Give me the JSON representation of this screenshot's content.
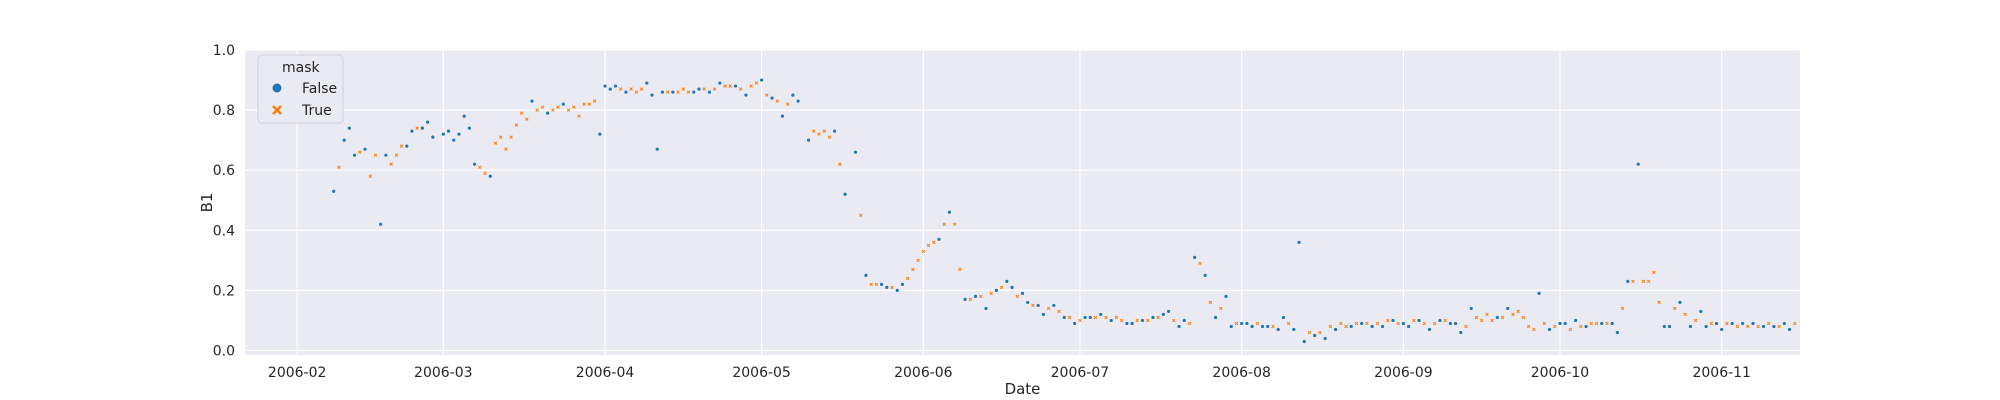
{
  "chart_data": {
    "type": "scatter",
    "xlabel": "Date",
    "ylabel": "B1",
    "xlim": [
      "2006-01-22",
      "2006-11-16"
    ],
    "ylim": [
      -0.015,
      1.0
    ],
    "grid": true,
    "legend": {
      "title": "mask",
      "placement": "top-left"
    },
    "x_ticks": [
      "2006-02",
      "2006-03",
      "2006-04",
      "2006-05",
      "2006-06",
      "2006-07",
      "2006-08",
      "2006-09",
      "2006-10",
      "2006-11"
    ],
    "y_ticks": [
      "0.0",
      "0.2",
      "0.4",
      "0.6",
      "0.8",
      "1.0"
    ],
    "series": [
      {
        "name": "False",
        "color": "#1f77b4",
        "marker": "circle",
        "points": [
          [
            "2006-02-08",
            0.53
          ],
          [
            "2006-02-10",
            0.7
          ],
          [
            "2006-02-11",
            0.74
          ],
          [
            "2006-02-12",
            0.65
          ],
          [
            "2006-02-14",
            0.67
          ],
          [
            "2006-02-17",
            0.42
          ],
          [
            "2006-02-18",
            0.65
          ],
          [
            "2006-02-22",
            0.68
          ],
          [
            "2006-02-23",
            0.73
          ],
          [
            "2006-02-25",
            0.74
          ],
          [
            "2006-02-26",
            0.76
          ],
          [
            "2006-02-27",
            0.71
          ],
          [
            "2006-03-01",
            0.72
          ],
          [
            "2006-03-02",
            0.73
          ],
          [
            "2006-03-03",
            0.7
          ],
          [
            "2006-03-04",
            0.72
          ],
          [
            "2006-03-05",
            0.78
          ],
          [
            "2006-03-06",
            0.74
          ],
          [
            "2006-03-07",
            0.62
          ],
          [
            "2006-03-10",
            0.58
          ],
          [
            "2006-03-18",
            0.83
          ],
          [
            "2006-03-21",
            0.79
          ],
          [
            "2006-03-24",
            0.82
          ],
          [
            "2006-03-31",
            0.72
          ],
          [
            "2006-04-01",
            0.88
          ],
          [
            "2006-04-02",
            0.87
          ],
          [
            "2006-04-03",
            0.88
          ],
          [
            "2006-04-05",
            0.86
          ],
          [
            "2006-04-09",
            0.89
          ],
          [
            "2006-04-10",
            0.85
          ],
          [
            "2006-04-11",
            0.67
          ],
          [
            "2006-04-12",
            0.86
          ],
          [
            "2006-04-14",
            0.86
          ],
          [
            "2006-04-18",
            0.86
          ],
          [
            "2006-04-19",
            0.87
          ],
          [
            "2006-04-21",
            0.86
          ],
          [
            "2006-04-23",
            0.89
          ],
          [
            "2006-04-26",
            0.88
          ],
          [
            "2006-04-28",
            0.85
          ],
          [
            "2006-05-01",
            0.9
          ],
          [
            "2006-05-03",
            0.84
          ],
          [
            "2006-05-05",
            0.78
          ],
          [
            "2006-05-07",
            0.85
          ],
          [
            "2006-05-08",
            0.83
          ],
          [
            "2006-05-10",
            0.7
          ],
          [
            "2006-05-15",
            0.73
          ],
          [
            "2006-05-17",
            0.52
          ],
          [
            "2006-05-19",
            0.66
          ],
          [
            "2006-05-21",
            0.25
          ],
          [
            "2006-05-24",
            0.22
          ],
          [
            "2006-05-25",
            0.21
          ],
          [
            "2006-05-27",
            0.2
          ],
          [
            "2006-05-28",
            0.22
          ],
          [
            "2006-06-04",
            0.37
          ],
          [
            "2006-06-06",
            0.46
          ],
          [
            "2006-06-09",
            0.17
          ],
          [
            "2006-06-11",
            0.18
          ],
          [
            "2006-06-13",
            0.14
          ],
          [
            "2006-06-15",
            0.2
          ],
          [
            "2006-06-17",
            0.23
          ],
          [
            "2006-06-18",
            0.21
          ],
          [
            "2006-06-20",
            0.19
          ],
          [
            "2006-06-21",
            0.16
          ],
          [
            "2006-06-23",
            0.15
          ],
          [
            "2006-06-24",
            0.12
          ],
          [
            "2006-06-26",
            0.15
          ],
          [
            "2006-06-28",
            0.11
          ],
          [
            "2006-06-30",
            0.09
          ],
          [
            "2006-07-02",
            0.11
          ],
          [
            "2006-07-03",
            0.11
          ],
          [
            "2006-07-05",
            0.12
          ],
          [
            "2006-07-07",
            0.1
          ],
          [
            "2006-07-10",
            0.09
          ],
          [
            "2006-07-11",
            0.09
          ],
          [
            "2006-07-13",
            0.1
          ],
          [
            "2006-07-15",
            0.11
          ],
          [
            "2006-07-17",
            0.12
          ],
          [
            "2006-07-18",
            0.13
          ],
          [
            "2006-07-20",
            0.08
          ],
          [
            "2006-07-21",
            0.1
          ],
          [
            "2006-07-23",
            0.31
          ],
          [
            "2006-07-25",
            0.25
          ],
          [
            "2006-07-27",
            0.11
          ],
          [
            "2006-07-29",
            0.18
          ],
          [
            "2006-07-30",
            0.08
          ],
          [
            "2006-08-01",
            0.09
          ],
          [
            "2006-08-02",
            0.09
          ],
          [
            "2006-08-03",
            0.08
          ],
          [
            "2006-08-05",
            0.08
          ],
          [
            "2006-08-06",
            0.08
          ],
          [
            "2006-08-08",
            0.07
          ],
          [
            "2006-08-09",
            0.11
          ],
          [
            "2006-08-11",
            0.07
          ],
          [
            "2006-08-12",
            0.36
          ],
          [
            "2006-08-13",
            0.03
          ],
          [
            "2006-08-15",
            0.05
          ],
          [
            "2006-08-17",
            0.04
          ],
          [
            "2006-08-19",
            0.07
          ],
          [
            "2006-08-22",
            0.08
          ],
          [
            "2006-08-24",
            0.09
          ],
          [
            "2006-08-26",
            0.08
          ],
          [
            "2006-08-28",
            0.08
          ],
          [
            "2006-08-30",
            0.1
          ],
          [
            "2006-09-01",
            0.09
          ],
          [
            "2006-09-02",
            0.08
          ],
          [
            "2006-09-04",
            0.1
          ],
          [
            "2006-09-06",
            0.07
          ],
          [
            "2006-09-08",
            0.1
          ],
          [
            "2006-09-10",
            0.09
          ],
          [
            "2006-09-11",
            0.09
          ],
          [
            "2006-09-12",
            0.06
          ],
          [
            "2006-09-14",
            0.14
          ],
          [
            "2006-09-19",
            0.11
          ],
          [
            "2006-09-21",
            0.14
          ],
          [
            "2006-09-27",
            0.19
          ],
          [
            "2006-09-29",
            0.07
          ],
          [
            "2006-10-01",
            0.09
          ],
          [
            "2006-10-02",
            0.09
          ],
          [
            "2006-10-04",
            0.1
          ],
          [
            "2006-10-06",
            0.08
          ],
          [
            "2006-10-09",
            0.09
          ],
          [
            "2006-10-11",
            0.09
          ],
          [
            "2006-10-12",
            0.06
          ],
          [
            "2006-10-14",
            0.23
          ],
          [
            "2006-10-16",
            0.62
          ],
          [
            "2006-10-21",
            0.08
          ],
          [
            "2006-10-22",
            0.08
          ],
          [
            "2006-10-24",
            0.16
          ],
          [
            "2006-10-26",
            0.08
          ],
          [
            "2006-10-28",
            0.13
          ],
          [
            "2006-10-29",
            0.08
          ],
          [
            "2006-10-31",
            0.09
          ],
          [
            "2006-11-01",
            0.07
          ],
          [
            "2006-11-03",
            0.09
          ],
          [
            "2006-11-05",
            0.09
          ],
          [
            "2006-11-07",
            0.09
          ],
          [
            "2006-11-09",
            0.08
          ],
          [
            "2006-11-11",
            0.08
          ],
          [
            "2006-11-13",
            0.09
          ],
          [
            "2006-11-14",
            0.07
          ]
        ]
      },
      {
        "name": "True",
        "color": "#ff7f0e",
        "marker": "x",
        "points": [
          [
            "2006-02-09",
            0.61
          ],
          [
            "2006-02-13",
            0.66
          ],
          [
            "2006-02-15",
            0.58
          ],
          [
            "2006-02-16",
            0.65
          ],
          [
            "2006-02-19",
            0.62
          ],
          [
            "2006-02-20",
            0.65
          ],
          [
            "2006-02-21",
            0.68
          ],
          [
            "2006-02-24",
            0.74
          ],
          [
            "2006-03-08",
            0.61
          ],
          [
            "2006-03-09",
            0.59
          ],
          [
            "2006-03-11",
            0.69
          ],
          [
            "2006-03-12",
            0.71
          ],
          [
            "2006-03-13",
            0.67
          ],
          [
            "2006-03-14",
            0.71
          ],
          [
            "2006-03-15",
            0.75
          ],
          [
            "2006-03-16",
            0.79
          ],
          [
            "2006-03-17",
            0.77
          ],
          [
            "2006-03-19",
            0.8
          ],
          [
            "2006-03-20",
            0.81
          ],
          [
            "2006-03-22",
            0.8
          ],
          [
            "2006-03-23",
            0.81
          ],
          [
            "2006-03-25",
            0.8
          ],
          [
            "2006-03-26",
            0.81
          ],
          [
            "2006-03-27",
            0.78
          ],
          [
            "2006-03-28",
            0.82
          ],
          [
            "2006-03-29",
            0.82
          ],
          [
            "2006-03-30",
            0.83
          ],
          [
            "2006-04-04",
            0.87
          ],
          [
            "2006-04-06",
            0.87
          ],
          [
            "2006-04-07",
            0.86
          ],
          [
            "2006-04-08",
            0.87
          ],
          [
            "2006-04-13",
            0.86
          ],
          [
            "2006-04-15",
            0.86
          ],
          [
            "2006-04-16",
            0.87
          ],
          [
            "2006-04-17",
            0.86
          ],
          [
            "2006-04-20",
            0.87
          ],
          [
            "2006-04-22",
            0.87
          ],
          [
            "2006-04-24",
            0.88
          ],
          [
            "2006-04-25",
            0.88
          ],
          [
            "2006-04-27",
            0.87
          ],
          [
            "2006-04-29",
            0.88
          ],
          [
            "2006-04-30",
            0.89
          ],
          [
            "2006-05-02",
            0.85
          ],
          [
            "2006-05-04",
            0.83
          ],
          [
            "2006-05-06",
            0.82
          ],
          [
            "2006-05-11",
            0.73
          ],
          [
            "2006-05-12",
            0.72
          ],
          [
            "2006-05-13",
            0.73
          ],
          [
            "2006-05-14",
            0.71
          ],
          [
            "2006-05-16",
            0.62
          ],
          [
            "2006-05-20",
            0.45
          ],
          [
            "2006-05-22",
            0.22
          ],
          [
            "2006-05-23",
            0.22
          ],
          [
            "2006-05-26",
            0.21
          ],
          [
            "2006-05-29",
            0.24
          ],
          [
            "2006-05-30",
            0.27
          ],
          [
            "2006-05-31",
            0.3
          ],
          [
            "2006-06-01",
            0.33
          ],
          [
            "2006-06-02",
            0.35
          ],
          [
            "2006-06-03",
            0.36
          ],
          [
            "2006-06-05",
            0.42
          ],
          [
            "2006-06-07",
            0.42
          ],
          [
            "2006-06-08",
            0.27
          ],
          [
            "2006-06-10",
            0.17
          ],
          [
            "2006-06-12",
            0.18
          ],
          [
            "2006-06-14",
            0.19
          ],
          [
            "2006-06-16",
            0.21
          ],
          [
            "2006-06-19",
            0.18
          ],
          [
            "2006-06-22",
            0.15
          ],
          [
            "2006-06-25",
            0.14
          ],
          [
            "2006-06-27",
            0.13
          ],
          [
            "2006-06-29",
            0.11
          ],
          [
            "2006-07-01",
            0.1
          ],
          [
            "2006-07-04",
            0.11
          ],
          [
            "2006-07-06",
            0.11
          ],
          [
            "2006-07-08",
            0.11
          ],
          [
            "2006-07-09",
            0.1
          ],
          [
            "2006-07-12",
            0.1
          ],
          [
            "2006-07-14",
            0.1
          ],
          [
            "2006-07-16",
            0.11
          ],
          [
            "2006-07-19",
            0.1
          ],
          [
            "2006-07-22",
            0.09
          ],
          [
            "2006-07-24",
            0.29
          ],
          [
            "2006-07-26",
            0.16
          ],
          [
            "2006-07-28",
            0.14
          ],
          [
            "2006-07-31",
            0.09
          ],
          [
            "2006-08-04",
            0.09
          ],
          [
            "2006-08-07",
            0.08
          ],
          [
            "2006-08-10",
            0.09
          ],
          [
            "2006-08-14",
            0.06
          ],
          [
            "2006-08-16",
            0.06
          ],
          [
            "2006-08-18",
            0.08
          ],
          [
            "2006-08-20",
            0.09
          ],
          [
            "2006-08-21",
            0.08
          ],
          [
            "2006-08-23",
            0.09
          ],
          [
            "2006-08-25",
            0.09
          ],
          [
            "2006-08-27",
            0.09
          ],
          [
            "2006-08-29",
            0.1
          ],
          [
            "2006-08-31",
            0.09
          ],
          [
            "2006-09-03",
            0.1
          ],
          [
            "2006-09-05",
            0.09
          ],
          [
            "2006-09-07",
            0.09
          ],
          [
            "2006-09-09",
            0.1
          ],
          [
            "2006-09-13",
            0.08
          ],
          [
            "2006-09-15",
            0.11
          ],
          [
            "2006-09-16",
            0.1
          ],
          [
            "2006-09-17",
            0.12
          ],
          [
            "2006-09-18",
            0.1
          ],
          [
            "2006-09-20",
            0.11
          ],
          [
            "2006-09-22",
            0.12
          ],
          [
            "2006-09-23",
            0.13
          ],
          [
            "2006-09-24",
            0.11
          ],
          [
            "2006-09-25",
            0.08
          ],
          [
            "2006-09-26",
            0.07
          ],
          [
            "2006-09-28",
            0.09
          ],
          [
            "2006-09-30",
            0.08
          ],
          [
            "2006-10-03",
            0.07
          ],
          [
            "2006-10-05",
            0.08
          ],
          [
            "2006-10-07",
            0.09
          ],
          [
            "2006-10-08",
            0.09
          ],
          [
            "2006-10-10",
            0.09
          ],
          [
            "2006-10-13",
            0.14
          ],
          [
            "2006-10-15",
            0.23
          ],
          [
            "2006-10-17",
            0.23
          ],
          [
            "2006-10-18",
            0.23
          ],
          [
            "2006-10-19",
            0.26
          ],
          [
            "2006-10-20",
            0.16
          ],
          [
            "2006-10-23",
            0.14
          ],
          [
            "2006-10-25",
            0.12
          ],
          [
            "2006-10-27",
            0.1
          ],
          [
            "2006-10-30",
            0.09
          ],
          [
            "2006-11-02",
            0.09
          ],
          [
            "2006-11-04",
            0.08
          ],
          [
            "2006-11-06",
            0.08
          ],
          [
            "2006-11-08",
            0.08
          ],
          [
            "2006-11-10",
            0.09
          ],
          [
            "2006-11-12",
            0.08
          ],
          [
            "2006-11-15",
            0.09
          ]
        ]
      }
    ]
  }
}
